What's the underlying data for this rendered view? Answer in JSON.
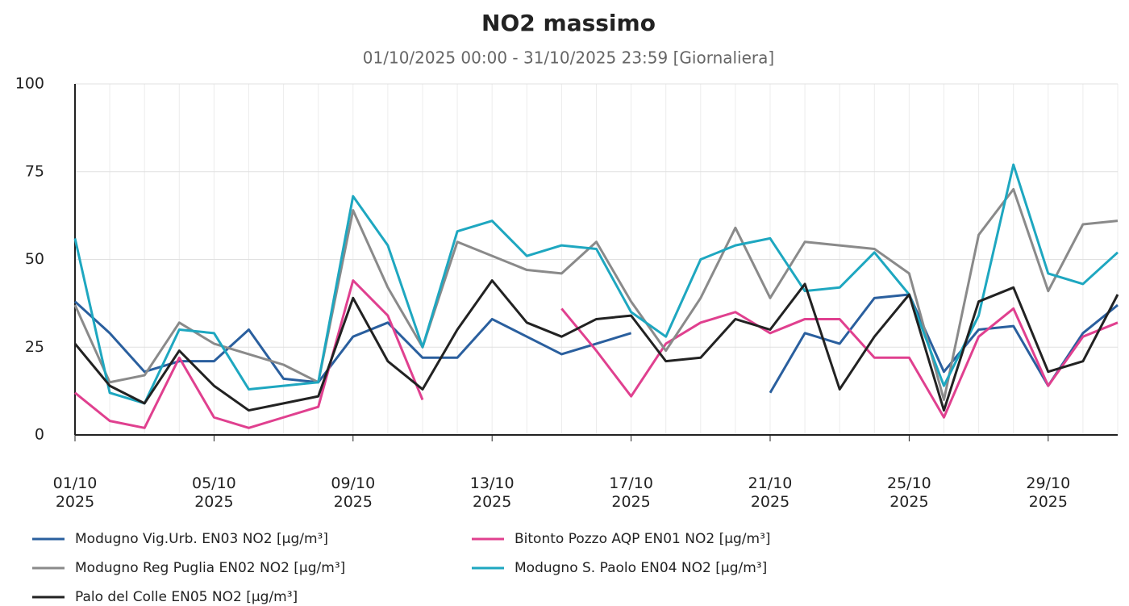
{
  "chart_data": {
    "type": "line",
    "title": "NO2 massimo",
    "subtitle": "01/10/2025 00:00 - 31/10/2025 23:59 [Giornaliera]",
    "categories": [
      "01/10\n2025",
      null,
      null,
      null,
      "05/10\n2025",
      null,
      null,
      null,
      "09/10\n2025",
      null,
      null,
      null,
      "13/10\n2025",
      null,
      null,
      null,
      "17/10\n2025",
      null,
      null,
      null,
      "21/10\n2025",
      null,
      null,
      null,
      "25/10\n2025",
      null,
      null,
      null,
      "29/10\n2025",
      null,
      null
    ],
    "ylim": [
      0,
      100
    ],
    "yticks": [
      0,
      25,
      50,
      75,
      100
    ],
    "grid": true,
    "series": [
      {
        "name": "Modugno Vig.Urb. EN03 NO2 [µg/m³]",
        "color": "#2a5f9e",
        "values": [
          38,
          29,
          18,
          21,
          21,
          30,
          16,
          15,
          28,
          32,
          22,
          22,
          33,
          28,
          23,
          26,
          29,
          null,
          null,
          null,
          12,
          29,
          26,
          39,
          40,
          18,
          30,
          31,
          14,
          29,
          37
        ]
      },
      {
        "name": "Bitonto Pozzo AQP EN01 NO2 [µg/m³]",
        "color": "#e0408f",
        "values": [
          12,
          4,
          2,
          22,
          5,
          2,
          5,
          8,
          44,
          34,
          10,
          null,
          null,
          null,
          36,
          24,
          11,
          26,
          32,
          35,
          29,
          33,
          33,
          22,
          22,
          5,
          28,
          36,
          14,
          28,
          32
        ]
      },
      {
        "name": "Modugno Reg Puglia EN02 NO2 [µg/m³]",
        "color": "#8a8a8a",
        "values": [
          37,
          15,
          17,
          32,
          26,
          23,
          20,
          15,
          64,
          42,
          25,
          55,
          51,
          47,
          46,
          55,
          38,
          24,
          39,
          59,
          39,
          55,
          54,
          53,
          46,
          10,
          57,
          70,
          41,
          60,
          61
        ]
      },
      {
        "name": "Modugno S. Paolo EN04 NO2 [µg/m³]",
        "color": "#1ea7c0",
        "values": [
          56,
          12,
          9,
          30,
          29,
          13,
          14,
          15,
          68,
          54,
          25,
          58,
          61,
          51,
          54,
          53,
          35,
          28,
          50,
          54,
          56,
          41,
          42,
          52,
          40,
          14,
          34,
          77,
          46,
          43,
          52
        ]
      },
      {
        "name": "Palo del Colle EN05 NO2 [µg/m³]",
        "color": "#222222",
        "values": [
          26,
          14,
          9,
          24,
          14,
          7,
          9,
          11,
          39,
          21,
          13,
          30,
          44,
          32,
          28,
          33,
          34,
          21,
          22,
          33,
          30,
          43,
          13,
          28,
          40,
          7,
          38,
          42,
          18,
          21,
          40
        ]
      }
    ]
  }
}
